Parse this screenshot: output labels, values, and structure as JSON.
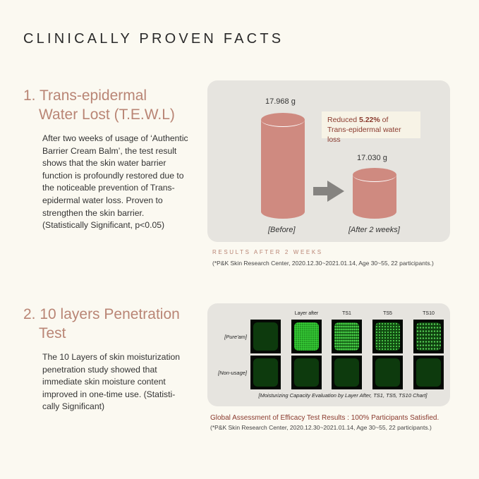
{
  "title": "CLINICALLY PROVEN FACTS",
  "section1": {
    "heading_line1": "1. Trans-epidermal",
    "heading_line2": "Water Lost (T.E.W.L)",
    "body": [
      "After two weeks of usage of ‘Authentic",
      "Barrier Cream Balm’, the test result",
      "shows that the skin water barrier",
      "function is profoundly restored due to",
      "the noticeable prevention of Trans-",
      "epidermal water loss. Proven to",
      "strengthen the skin barrier.",
      "(Statistically Significant, p<0.05)"
    ],
    "chart": {
      "before_value": "17.968 g",
      "after_value": "17.030 g",
      "before_label": "[Before]",
      "after_label": "[After 2 weeks]",
      "callout_prefix": "Reduced ",
      "callout_bold": "5.22%",
      "callout_suffix": " of",
      "callout_line2": "Trans-epidermal water loss",
      "arrow_icon": "arrow-right-icon"
    },
    "results_label": "RESULTS AFTER 2 WEEKS",
    "source": "(*P&K Skin Research Center, 2020.12.30~2021.01.14, Age 30~55, 22 participants.)"
  },
  "section2": {
    "heading_line1": "2. 10 layers Penetration",
    "heading_line2": "Test",
    "body": [
      "The 10 Layers of skin moisturization",
      "penetration study showed that",
      "immediate skin moisture content",
      "improved in one-time use. (Statisti-",
      "cally Significant)"
    ],
    "columns": [
      "",
      "Layer after",
      "TS1",
      "TS5",
      "TS10"
    ],
    "rows": [
      "[Pure'am]",
      "[Non-usage]"
    ],
    "caption": "[Moisturizing Capacity Evaluation by Layer After, TS1, TS5, TS10 Chart]",
    "assessment": "Global Assessment of Efficacy Test Results : 100% Participants Satisfied.",
    "source": "(*P&K Skin Research Center, 2020.12.30~2021.01.14, Age 30~55, 22 participants.)"
  },
  "colors": {
    "accent": "#b98575",
    "cylinder": "#cf8a80",
    "panel": "#e6e4df",
    "assessment": "#8a3a2e"
  }
}
